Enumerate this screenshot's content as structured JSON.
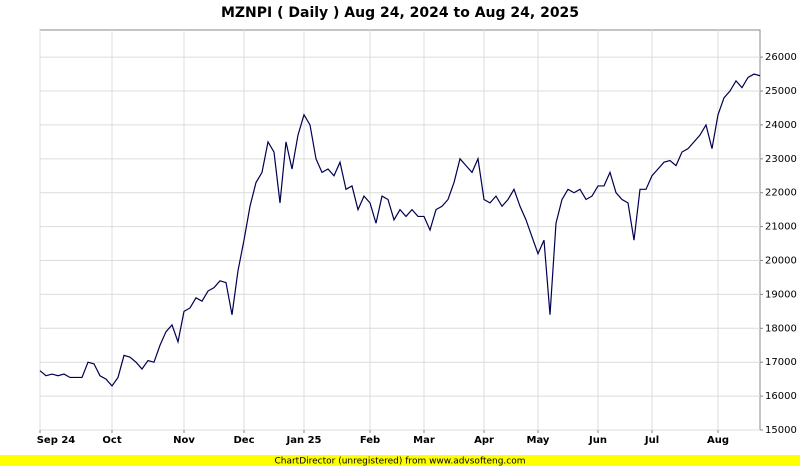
{
  "chart_data": {
    "type": "line",
    "title": "MZNPI ( Daily ) Aug 24, 2024 to Aug 24, 2025",
    "footer": "ChartDirector (unregistered) from www.advsofteng.com",
    "color": "#000050",
    "grid": true,
    "categories": [
      "Sep 24",
      null,
      null,
      null,
      null,
      null,
      null,
      null,
      null,
      null,
      null,
      null,
      "Oct",
      null,
      null,
      null,
      null,
      null,
      null,
      null,
      null,
      null,
      null,
      null,
      "Nov",
      null,
      null,
      null,
      null,
      null,
      null,
      null,
      null,
      null,
      "Dec",
      null,
      null,
      null,
      null,
      null,
      null,
      null,
      null,
      null,
      "Jan 25",
      null,
      null,
      null,
      null,
      null,
      null,
      null,
      null,
      null,
      null,
      "Feb",
      null,
      null,
      null,
      null,
      null,
      null,
      null,
      null,
      "Mar",
      null,
      null,
      null,
      null,
      null,
      null,
      null,
      null,
      null,
      "Apr",
      null,
      null,
      null,
      null,
      null,
      null,
      null,
      null,
      "May",
      null,
      null,
      null,
      null,
      null,
      null,
      null,
      null,
      null,
      "Jun",
      null,
      null,
      null,
      null,
      null,
      null,
      null,
      null,
      "Jul",
      null,
      null,
      null,
      null,
      null,
      null,
      null,
      null,
      null,
      null,
      "Aug",
      null,
      null,
      null,
      null,
      null,
      null,
      null
    ],
    "values": [
      16750,
      16600,
      16650,
      16600,
      16650,
      16550,
      16550,
      16550,
      17000,
      16950,
      16600,
      16500,
      16300,
      16550,
      17200,
      17150,
      17000,
      16800,
      17050,
      17000,
      17500,
      17900,
      18100,
      17600,
      18500,
      18600,
      18900,
      18800,
      19100,
      19200,
      19400,
      19350,
      18400,
      19700,
      20600,
      21600,
      22300,
      22600,
      23500,
      23200,
      21700,
      23500,
      22700,
      23700,
      24300,
      24000,
      23000,
      22600,
      22700,
      22500,
      22900,
      22100,
      22200,
      21500,
      21900,
      21700,
      21100,
      21900,
      21800,
      21200,
      21500,
      21300,
      21500,
      21300,
      21300,
      20900,
      21500,
      21600,
      21800,
      22300,
      23000,
      22800,
      22600,
      23000,
      21800,
      21700,
      21900,
      21600,
      21800,
      22100,
      21600,
      21200,
      20700,
      20200,
      20600,
      18400,
      21100,
      21800,
      22100,
      22000,
      22100,
      21800,
      21900,
      22200,
      22200,
      22600,
      22000,
      21800,
      21700,
      20600,
      22100,
      22100,
      22500,
      22700,
      22900,
      22950,
      22800,
      23200,
      23300,
      23500,
      23700,
      24000,
      23300,
      24300,
      24800,
      25000,
      25300,
      25100,
      25400,
      25500,
      25450
    ],
    "ylim": [
      15000,
      26800
    ],
    "yticks": [
      15000,
      16000,
      17000,
      18000,
      19000,
      20000,
      21000,
      22000,
      23000,
      24000,
      25000,
      26000
    ]
  }
}
